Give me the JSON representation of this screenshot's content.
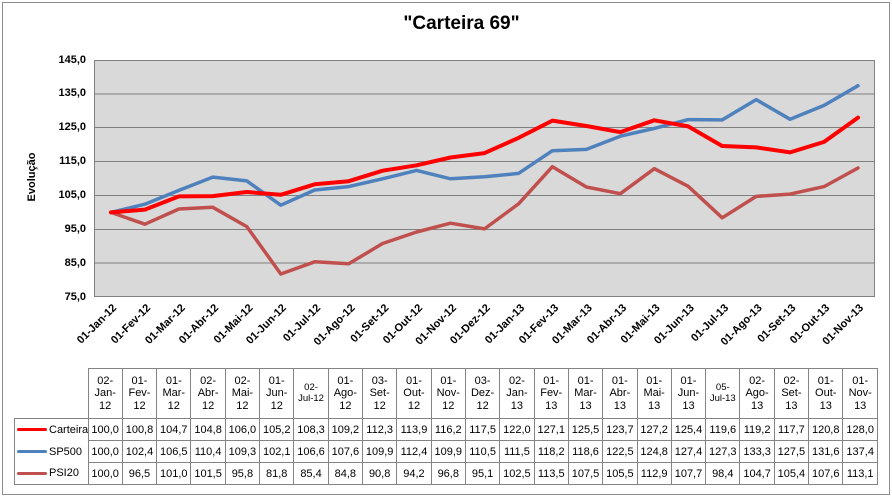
{
  "chart_data": {
    "type": "line",
    "title": "\"Carteira 69\"",
    "ylabel": "Evolução",
    "xlabel": "",
    "ylim": [
      75,
      145
    ],
    "ytick_step": 10,
    "y_tick_labels": [
      "145,0",
      "135,0",
      "125,0",
      "115,0",
      "105,0",
      "95,0",
      "85,0",
      "75,0"
    ],
    "grid": "horizontal-major",
    "legend_position": "table-left",
    "plot_bg": "#d9d9d9",
    "grid_color": "#808080",
    "x_labels": [
      "01-Jan-12",
      "01-Fev-12",
      "01-Mar-12",
      "01-Abr-12",
      "01-Mai-12",
      "01-Jun-12",
      "01-Jul-12",
      "01-Ago-12",
      "01-Set-12",
      "01-Out-12",
      "01-Nov-12",
      "01-Dez-12",
      "01-Jan-13",
      "01-Fev-13",
      "01-Mar-13",
      "01-Abr-13",
      "01-Mai-13",
      "01-Jun-13",
      "01-Jul-13",
      "01-Ago-13",
      "01-Set-13",
      "01-Out-13",
      "01-Nov-13"
    ],
    "series": [
      {
        "name": "Carteira",
        "color": "#ff0000",
        "values": [
          100.0,
          100.8,
          104.7,
          104.8,
          106.0,
          105.2,
          108.3,
          109.2,
          112.3,
          113.9,
          116.2,
          117.5,
          122.0,
          127.1,
          125.5,
          123.7,
          127.2,
          125.4,
          119.6,
          119.2,
          117.7,
          120.8,
          128.0
        ]
      },
      {
        "name": "SP500",
        "color": "#4f81bd",
        "values": [
          100.0,
          102.4,
          106.5,
          110.4,
          109.3,
          102.1,
          106.6,
          107.6,
          109.9,
          112.4,
          109.9,
          110.5,
          111.5,
          118.2,
          118.6,
          122.5,
          124.8,
          127.4,
          127.3,
          133.3,
          127.5,
          131.6,
          137.4
        ]
      },
      {
        "name": "PSI20",
        "color": "#c0504d",
        "values": [
          100.0,
          96.5,
          101.0,
          101.5,
          95.8,
          81.8,
          85.4,
          84.8,
          90.8,
          94.2,
          96.8,
          95.1,
          102.5,
          113.5,
          107.5,
          105.5,
          112.9,
          107.7,
          98.4,
          104.7,
          105.4,
          107.6,
          113.1
        ]
      }
    ]
  },
  "table": {
    "col_headers": [
      "02-\nJan-\n12",
      "01-\nFev-\n12",
      "01-\nMar-\n12",
      "02-\nAbr-\n12",
      "02-\nMai-\n12",
      "01-\nJun-\n12",
      "02-\nJul-12",
      "01-\nAgo-\n12",
      "03-\nSet-\n12",
      "01-\nOut-\n12",
      "01-\nNov-\n12",
      "03-\nDez-\n12",
      "02-\nJan-\n13",
      "01-\nFev-\n13",
      "01-\nMar-\n13",
      "01-\nAbr-\n13",
      "01-\nMai-\n13",
      "01-\nJun-\n13",
      "05-\nJul-13",
      "02-\nAgo-\n13",
      "02-\nSet-\n13",
      "01-\nOut-\n13",
      "01-\nNov-\n13"
    ],
    "rows": [
      {
        "name": "Carteira",
        "values": [
          "100,0",
          "100,8",
          "104,7",
          "104,8",
          "106,0",
          "105,2",
          "108,3",
          "109,2",
          "112,3",
          "113,9",
          "116,2",
          "117,5",
          "122,0",
          "127,1",
          "125,5",
          "123,7",
          "127,2",
          "125,4",
          "119,6",
          "119,2",
          "117,7",
          "120,8",
          "128,0"
        ]
      },
      {
        "name": "SP500",
        "values": [
          "100,0",
          "102,4",
          "106,5",
          "110,4",
          "109,3",
          "102,1",
          "106,6",
          "107,6",
          "109,9",
          "112,4",
          "109,9",
          "110,5",
          "111,5",
          "118,2",
          "118,6",
          "122,5",
          "124,8",
          "127,4",
          "127,3",
          "133,3",
          "127,5",
          "131,6",
          "137,4"
        ]
      },
      {
        "name": "PSI20",
        "values": [
          "100,0",
          "96,5",
          "101,0",
          "101,5",
          "95,8",
          "81,8",
          "85,4",
          "84,8",
          "90,8",
          "94,2",
          "96,8",
          "95,1",
          "102,5",
          "113,5",
          "107,5",
          "105,5",
          "112,9",
          "107,7",
          "98,4",
          "104,7",
          "105,4",
          "107,6",
          "113,1"
        ]
      }
    ]
  }
}
